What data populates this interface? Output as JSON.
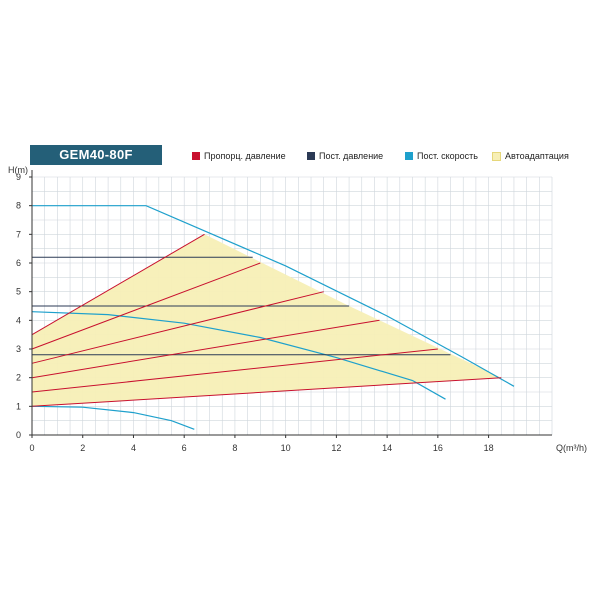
{
  "chart_data": {
    "type": "line",
    "title": "GEM40-80F",
    "xlabel": "Q(m³/h)",
    "ylabel": "H(m)",
    "xlim": [
      0,
      20.5
    ],
    "ylim": [
      0,
      9
    ],
    "xticks": [
      0,
      2,
      4,
      6,
      8,
      10,
      12,
      14,
      16,
      18
    ],
    "yticks": [
      0,
      1,
      2,
      3,
      4,
      5,
      6,
      7,
      8,
      9
    ],
    "grid": true,
    "legend_position": "top",
    "legend": [
      {
        "label": "Пропорц. давление",
        "color": "#c8102e"
      },
      {
        "label": "Пост. давление",
        "color": "#2b3a55"
      },
      {
        "label": "Пост. скорость",
        "color": "#1ea0cc"
      },
      {
        "label": "Автоадаптация",
        "color": "#f7efb6"
      }
    ],
    "autoadapt_area": [
      [
        0,
        3.5
      ],
      [
        6.8,
        7.0
      ],
      [
        12.5,
        4.5
      ],
      [
        18.5,
        2.0
      ],
      [
        0,
        1.0
      ]
    ],
    "proportional_lines": [
      [
        [
          0,
          3.5
        ],
        [
          6.8,
          7.0
        ]
      ],
      [
        [
          0,
          3.0
        ],
        [
          9.0,
          6.0
        ]
      ],
      [
        [
          0,
          2.5
        ],
        [
          11.5,
          5.0
        ]
      ],
      [
        [
          0,
          2.0
        ],
        [
          13.7,
          4.0
        ]
      ],
      [
        [
          0,
          1.5
        ],
        [
          16.0,
          3.0
        ]
      ],
      [
        [
          0,
          1.0
        ],
        [
          18.5,
          2.0
        ]
      ]
    ],
    "constant_lines": [
      [
        [
          0,
          6.2
        ],
        [
          8.7,
          6.2
        ]
      ],
      [
        [
          0,
          4.5
        ],
        [
          12.5,
          4.5
        ]
      ],
      [
        [
          0,
          2.8
        ],
        [
          16.5,
          2.8
        ]
      ]
    ],
    "speed_curves": [
      [
        [
          0,
          8.0
        ],
        [
          4.5,
          8.0
        ],
        [
          10,
          5.9
        ],
        [
          14,
          4.15
        ],
        [
          17,
          2.7
        ],
        [
          19.0,
          1.7
        ]
      ],
      [
        [
          0,
          4.3
        ],
        [
          3,
          4.2
        ],
        [
          6,
          3.9
        ],
        [
          9,
          3.4
        ],
        [
          12,
          2.7
        ],
        [
          15,
          1.9
        ],
        [
          16.3,
          1.25
        ]
      ],
      [
        [
          0,
          1.0
        ],
        [
          2,
          0.97
        ],
        [
          4,
          0.78
        ],
        [
          5.5,
          0.5
        ],
        [
          6.4,
          0.2
        ]
      ]
    ]
  }
}
